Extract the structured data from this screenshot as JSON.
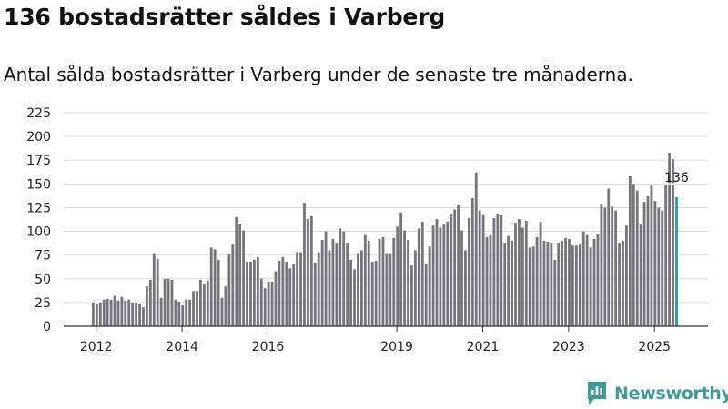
{
  "header": {
    "title": "136 bostadsrätter såldes i Varberg",
    "subtitle": "Antal sålda bostadsrätter i Varberg under de senaste tre månaderna."
  },
  "brand": {
    "name": "Newsworthy",
    "icon": "newsworthy-logo-icon",
    "color": "#3d9c95"
  },
  "colors": {
    "bar": "#75757b",
    "highlight": "#2a9d95",
    "grid": "#dedede",
    "axis": "#333333"
  },
  "chart_data": {
    "type": "bar",
    "title": "136 bostadsrätter såldes i Varberg",
    "subtitle": "Antal sålda bostadsrätter i Varberg under de senaste tre månaderna.",
    "xlabel": "",
    "ylabel": "",
    "ylim": [
      0,
      225
    ],
    "yticks": [
      0,
      25,
      50,
      75,
      100,
      125,
      150,
      175,
      200,
      225
    ],
    "xticks": [
      "2012",
      "2014",
      "2016",
      "2019",
      "2021",
      "2023",
      "2025"
    ],
    "xtick_positions": [
      2012,
      2014,
      2016,
      2019,
      2021,
      2023,
      2025
    ],
    "x_start": 2011.9,
    "months_per_bar": 1,
    "grid": true,
    "legend": "none",
    "values": [
      25,
      24,
      25,
      28,
      29,
      28,
      32,
      27,
      31,
      27,
      28,
      25,
      25,
      24,
      20,
      42,
      49,
      77,
      71,
      30,
      50,
      50,
      49,
      28,
      26,
      22,
      28,
      28,
      37,
      37,
      49,
      45,
      48,
      83,
      81,
      70,
      30,
      42,
      76,
      86,
      115,
      108,
      101,
      68,
      68,
      70,
      73,
      50,
      40,
      47,
      47,
      58,
      69,
      73,
      68,
      61,
      65,
      78,
      78,
      130,
      113,
      116,
      67,
      78,
      91,
      100,
      80,
      92,
      88,
      103,
      100,
      88,
      70,
      60,
      77,
      80,
      96,
      90,
      68,
      69,
      92,
      94,
      77,
      77,
      93,
      105,
      120,
      101,
      91,
      64,
      80,
      103,
      110,
      65,
      84,
      106,
      113,
      104,
      107,
      110,
      118,
      123,
      128,
      101,
      80,
      114,
      135,
      162,
      122,
      117,
      94,
      96,
      114,
      118,
      117,
      88,
      95,
      90,
      109,
      113,
      104,
      111,
      83,
      84,
      94,
      110,
      90,
      89,
      88,
      70,
      88,
      90,
      93,
      92,
      85,
      85,
      86,
      100,
      96,
      83,
      92,
      97,
      129,
      125,
      145,
      126,
      122,
      88,
      90,
      106,
      158,
      150,
      143,
      107,
      131,
      137,
      148,
      132,
      125,
      122,
      149,
      149,
      149,
      136
    ],
    "overlay_values": [
      183,
      176
    ],
    "highlight_index": 163,
    "annotations": [
      {
        "index": 163,
        "text": "136"
      }
    ]
  }
}
